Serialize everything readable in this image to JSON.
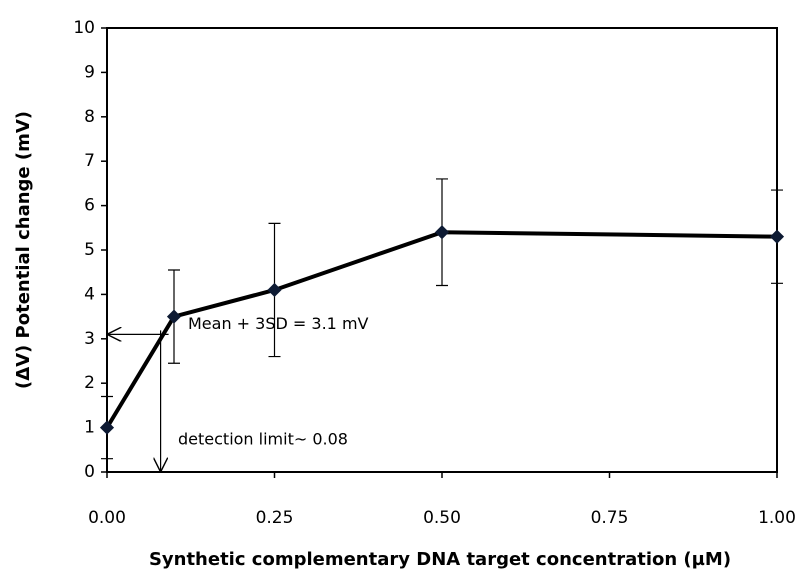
{
  "chart_data": {
    "type": "line",
    "x_label": "Synthetic complementary DNA target concentration (µM)",
    "y_label": "(ΔV) Potential change (mV)",
    "x": [
      0,
      0.1,
      0.25,
      0.5,
      1.0
    ],
    "series": [
      {
        "name": "Potential change",
        "color": "#000000",
        "values": [
          1.0,
          3.5,
          4.1,
          5.4,
          5.3
        ],
        "errors": [
          0.7,
          1.05,
          1.5,
          1.2,
          1.05
        ]
      }
    ],
    "xlim": [
      0,
      1
    ],
    "xticks": [
      {
        "value": 0,
        "label": "0.00"
      },
      {
        "value": 0.25,
        "label": "0.25"
      },
      {
        "value": 0.5,
        "label": "0.50"
      },
      {
        "value": 0.75,
        "label": "0.75"
      },
      {
        "value": 1,
        "label": "1.00"
      }
    ],
    "ylim": [
      0,
      10
    ],
    "yticks": [
      0,
      1,
      2,
      3,
      4,
      5,
      6,
      7,
      8,
      9,
      10
    ],
    "annotations": [
      {
        "text": "Mean + 3SD = 3.1 mV",
        "y": 3.1
      },
      {
        "text": "detection limit~ 0.08",
        "x": 0.08
      }
    ]
  }
}
